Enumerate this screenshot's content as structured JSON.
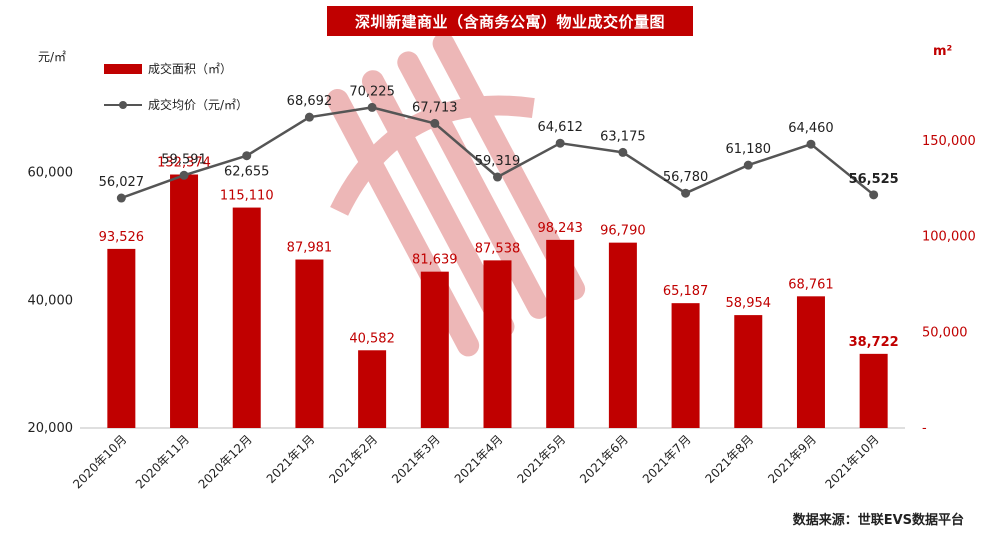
{
  "title": "深圳新建商业（含商务公寓）物业成交价量图",
  "source": "数据来源：世联EVS数据平台",
  "chart_data": {
    "type": "bar+line",
    "categories": [
      "2020年10月",
      "2020年11月",
      "2020年12月",
      "2021年1月",
      "2021年2月",
      "2021年3月",
      "2021年4月",
      "2021年5月",
      "2021年6月",
      "2021年7月",
      "2021年8月",
      "2021年9月",
      "2021年10月"
    ],
    "series": [
      {
        "name": "成交面积（㎡）",
        "type": "bar",
        "axis": "right",
        "values": [
          93526,
          132374,
          115110,
          87981,
          40582,
          81639,
          87538,
          98243,
          96790,
          65187,
          58954,
          68761,
          38722
        ],
        "labels": [
          "93,526",
          "132,374",
          "115,110",
          "87,981",
          "40,582",
          "81,639",
          "87,538",
          "98,243",
          "96,790",
          "65,187",
          "58,954",
          "68,761",
          "38,722"
        ],
        "color": "#c00000"
      },
      {
        "name": "成交均价（元/㎡）",
        "type": "line",
        "axis": "left",
        "values": [
          56027,
          59591,
          62655,
          68692,
          70225,
          67713,
          59319,
          64612,
          63175,
          56780,
          61180,
          64460,
          56525
        ],
        "labels": [
          "56,027",
          "59,591",
          "62,655",
          "68,692",
          "70,225",
          "67,713",
          "59,319",
          "64,612",
          "63,175",
          "56,780",
          "61,180",
          "64,460",
          "56,525"
        ],
        "color": "#555555"
      }
    ],
    "left_axis": {
      "unit": "元/㎡",
      "range": [
        20000,
        80000
      ],
      "ticks": [
        20000,
        40000,
        60000
      ],
      "tick_labels": [
        "20,000",
        "40,000",
        "60,000"
      ]
    },
    "right_axis": {
      "unit": "m²",
      "range": [
        0,
        200000
      ],
      "ticks": [
        0,
        50000,
        100000,
        150000
      ],
      "tick_labels": [
        "-",
        "50,000",
        "100,000",
        "150,000"
      ]
    },
    "legend": "top-left",
    "grid": false
  },
  "colors": {
    "accent": "#c00000",
    "line": "#555555",
    "axis_text": "#222222"
  }
}
